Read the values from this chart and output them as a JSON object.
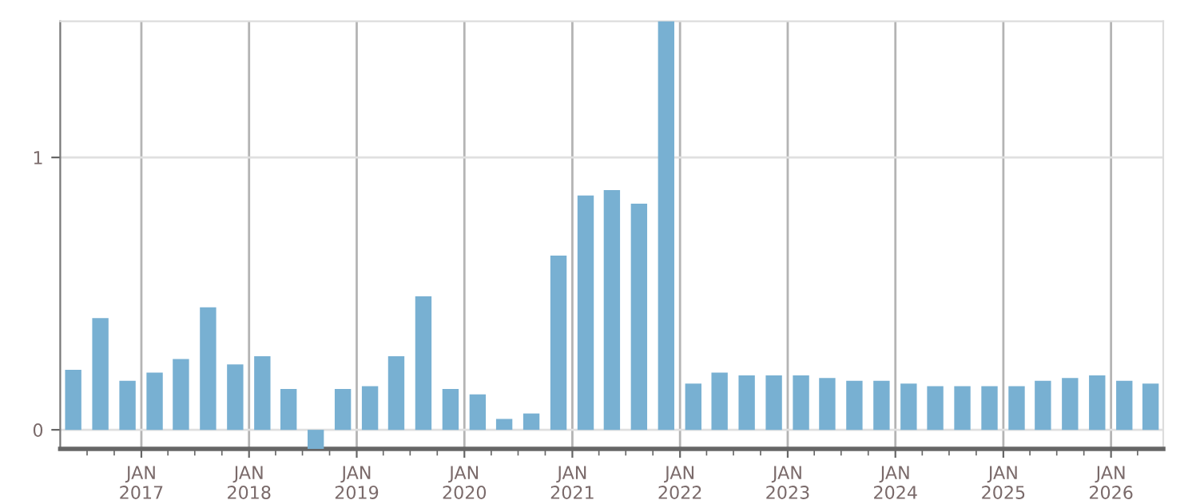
{
  "chart_data": {
    "type": "bar",
    "x": [
      "2016-05-15",
      "2016-08-15",
      "2016-11-15",
      "2017-02-15",
      "2017-05-15",
      "2017-08-15",
      "2017-11-15",
      "2018-02-15",
      "2018-05-15",
      "2018-08-15",
      "2018-11-15",
      "2019-02-15",
      "2019-05-15",
      "2019-08-15",
      "2019-11-15",
      "2020-02-15",
      "2020-05-15",
      "2020-08-15",
      "2020-11-15",
      "2021-02-15",
      "2021-05-15",
      "2021-08-15",
      "2021-11-15",
      "2022-02-15",
      "2022-05-15",
      "2022-08-15",
      "2022-11-15",
      "2023-02-15",
      "2023-05-15",
      "2023-08-15",
      "2023-11-15",
      "2024-02-15",
      "2024-05-15",
      "2024-08-15",
      "2024-11-15",
      "2025-02-15",
      "2025-05-15",
      "2025-08-15",
      "2025-11-15",
      "2026-02-15",
      "2026-05-15"
    ],
    "values": [
      0.22,
      0.41,
      0.18,
      0.21,
      0.26,
      0.45,
      0.24,
      0.27,
      0.15,
      -0.07,
      0.15,
      0.16,
      0.27,
      0.49,
      0.15,
      0.13,
      0.04,
      0.06,
      0.64,
      0.86,
      0.88,
      0.83,
      1.5,
      0.17,
      0.21,
      0.2,
      0.2,
      0.2,
      0.19,
      0.18,
      0.18,
      0.17,
      0.16,
      0.16,
      0.16,
      0.16,
      0.18,
      0.19,
      0.2,
      0.18,
      0.17
    ],
    "color": "#78b0d2",
    "xlim": [
      "2016-04-01",
      "2026-06-27"
    ],
    "ylim": [
      -0.07,
      1.5
    ],
    "yticks": [
      0,
      1
    ],
    "xticks": [
      {
        "value": "2016-07-01",
        "label": null
      },
      {
        "value": "2016-10-01",
        "label": null
      },
      {
        "value": "2017-01-01",
        "label": "JAN\n2017"
      },
      {
        "value": "2017-04-01",
        "label": null
      },
      {
        "value": "2017-07-01",
        "label": null
      },
      {
        "value": "2017-10-01",
        "label": null
      },
      {
        "value": "2018-01-01",
        "label": "JAN\n2018"
      },
      {
        "value": "2018-04-01",
        "label": null
      },
      {
        "value": "2018-07-01",
        "label": null
      },
      {
        "value": "2018-10-01",
        "label": null
      },
      {
        "value": "2019-01-01",
        "label": "JAN\n2019"
      },
      {
        "value": "2019-04-01",
        "label": null
      },
      {
        "value": "2019-07-01",
        "label": null
      },
      {
        "value": "2019-10-01",
        "label": null
      },
      {
        "value": "2020-01-01",
        "label": "JAN\n2020"
      },
      {
        "value": "2020-04-01",
        "label": null
      },
      {
        "value": "2020-07-01",
        "label": null
      },
      {
        "value": "2020-10-01",
        "label": null
      },
      {
        "value": "2021-01-01",
        "label": "JAN\n2021"
      },
      {
        "value": "2021-04-01",
        "label": null
      },
      {
        "value": "2021-07-01",
        "label": null
      },
      {
        "value": "2021-10-01",
        "label": null
      },
      {
        "value": "2022-01-01",
        "label": "JAN\n2022"
      },
      {
        "value": "2022-04-01",
        "label": null
      },
      {
        "value": "2022-07-01",
        "label": null
      },
      {
        "value": "2022-10-01",
        "label": null
      },
      {
        "value": "2023-01-01",
        "label": "JAN\n2023"
      },
      {
        "value": "2023-04-01",
        "label": null
      },
      {
        "value": "2023-07-01",
        "label": null
      },
      {
        "value": "2023-10-01",
        "label": null
      },
      {
        "value": "2024-01-01",
        "label": "JAN\n2024"
      },
      {
        "value": "2024-04-01",
        "label": null
      },
      {
        "value": "2024-07-01",
        "label": null
      },
      {
        "value": "2024-10-01",
        "label": null
      },
      {
        "value": "2025-01-01",
        "label": "JAN\n2025"
      },
      {
        "value": "2025-04-01",
        "label": null
      },
      {
        "value": "2025-07-01",
        "label": null
      },
      {
        "value": "2025-10-01",
        "label": null
      },
      {
        "value": "2026-01-01",
        "label": "JAN\n2026"
      },
      {
        "value": "2026-04-01",
        "label": null
      }
    ],
    "grid": true
  }
}
